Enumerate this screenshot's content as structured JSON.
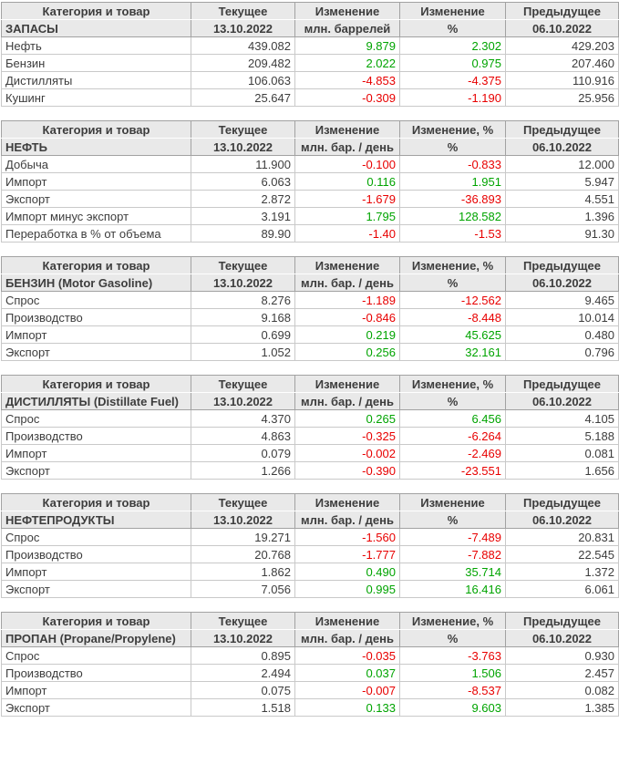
{
  "report": {
    "current_date": "13.10.2022",
    "previous_date": "06.10.2022"
  },
  "colors": {
    "positive_value": "#00a400",
    "negative_value": "#e80000",
    "header_background": "#e9e9e9"
  },
  "chart_data": [
    {
      "type": "table",
      "id": "inventories",
      "title": "ЗАПАСЫ",
      "unit": "млн. баррелей",
      "columns": [
        "Категория и товар",
        "Текущее",
        "Изменение",
        "Изменение",
        "Предыдущее"
      ],
      "subheader": [
        "ЗАПАСЫ",
        "13.10.2022",
        "млн. баррелей",
        "%",
        "06.10.2022"
      ],
      "rows": [
        [
          "Нефть",
          "439.082",
          "9.879",
          "2.302",
          "429.203"
        ],
        [
          "Бензин",
          "209.482",
          "2.022",
          "0.975",
          "207.460"
        ],
        [
          "Дистилляты",
          "106.063",
          "-4.853",
          "-4.375",
          "110.916"
        ],
        [
          "Кушинг",
          "25.647",
          "-0.309",
          "-1.190",
          "25.956"
        ]
      ]
    },
    {
      "type": "table",
      "id": "crude-oil",
      "title": "НЕФТЬ",
      "unit": "млн. бар. / день",
      "columns": [
        "Категория и товар",
        "Текущее",
        "Изменение",
        "Изменение, %",
        "Предыдущее"
      ],
      "subheader": [
        "НЕФТЬ",
        "13.10.2022",
        "млн. бар. / день",
        "%",
        "06.10.2022"
      ],
      "rows": [
        [
          "Добыча",
          "11.900",
          "-0.100",
          "-0.833",
          "12.000"
        ],
        [
          "Импорт",
          "6.063",
          "0.116",
          "1.951",
          "5.947"
        ],
        [
          "Экспорт",
          "2.872",
          "-1.679",
          "-36.893",
          "4.551"
        ],
        [
          "Импорт минус экспорт",
          "3.191",
          "1.795",
          "128.582",
          "1.396"
        ],
        [
          "Переработка в % от объема",
          "89.90",
          "-1.40",
          "-1.53",
          "91.30"
        ]
      ]
    },
    {
      "type": "table",
      "id": "gasoline",
      "title": "БЕНЗИН (Motor Gasoline)",
      "unit": "млн. бар. / день",
      "columns": [
        "Категория и товар",
        "Текущее",
        "Изменение",
        "Изменение, %",
        "Предыдущее"
      ],
      "subheader": [
        "БЕНЗИН (Motor Gasoline)",
        "13.10.2022",
        "млн. бар. / день",
        "%",
        "06.10.2022"
      ],
      "rows": [
        [
          "Спрос",
          "8.276",
          "-1.189",
          "-12.562",
          "9.465"
        ],
        [
          "Производство",
          "9.168",
          "-0.846",
          "-8.448",
          "10.014"
        ],
        [
          "Импорт",
          "0.699",
          "0.219",
          "45.625",
          "0.480"
        ],
        [
          "Экспорт",
          "1.052",
          "0.256",
          "32.161",
          "0.796"
        ]
      ]
    },
    {
      "type": "table",
      "id": "distillate",
      "title": "ДИСТИЛЛЯТЫ (Distillate Fuel)",
      "unit": "млн. бар. / день",
      "columns": [
        "Категория и товар",
        "Текущее",
        "Изменение",
        "Изменение, %",
        "Предыдущее"
      ],
      "subheader": [
        "ДИСТИЛЛЯТЫ (Distillate Fuel)",
        "13.10.2022",
        "млн. бар. / день",
        "%",
        "06.10.2022"
      ],
      "rows": [
        [
          "Спрос",
          "4.370",
          "0.265",
          "6.456",
          "4.105"
        ],
        [
          "Производство",
          "4.863",
          "-0.325",
          "-6.264",
          "5.188"
        ],
        [
          "Импорт",
          "0.079",
          "-0.002",
          "-2.469",
          "0.081"
        ],
        [
          "Экспорт",
          "1.266",
          "-0.390",
          "-23.551",
          "1.656"
        ]
      ]
    },
    {
      "type": "table",
      "id": "petroleum-products",
      "title": "НЕФТЕПРОДУКТЫ",
      "unit": "млн. бар. / день",
      "columns": [
        "Категория и товар",
        "Текущее",
        "Изменение",
        "Изменение",
        "Предыдущее"
      ],
      "subheader": [
        "НЕФТЕПРОДУКТЫ",
        "13.10.2022",
        "млн. бар. / день",
        "%",
        "06.10.2022"
      ],
      "rows": [
        [
          "Спрос",
          "19.271",
          "-1.560",
          "-7.489",
          "20.831"
        ],
        [
          "Производство",
          "20.768",
          "-1.777",
          "-7.882",
          "22.545"
        ],
        [
          "Импорт",
          "1.862",
          "0.490",
          "35.714",
          "1.372"
        ],
        [
          "Экспорт",
          "7.056",
          "0.995",
          "16.416",
          "6.061"
        ]
      ]
    },
    {
      "type": "table",
      "id": "propane",
      "title": "ПРОПАН (Propane/Propylene)",
      "unit": "млн. бар. / день",
      "columns": [
        "Категория и товар",
        "Текущее",
        "Изменение",
        "Изменение, %",
        "Предыдущее"
      ],
      "subheader": [
        "ПРОПАН (Propane/Propylene)",
        "13.10.2022",
        "млн. бар. / день",
        "%",
        "06.10.2022"
      ],
      "rows": [
        [
          "Спрос",
          "0.895",
          "-0.035",
          "-3.763",
          "0.930"
        ],
        [
          "Производство",
          "2.494",
          "0.037",
          "1.506",
          "2.457"
        ],
        [
          "Импорт",
          "0.075",
          "-0.007",
          "-8.537",
          "0.082"
        ],
        [
          "Экспорт",
          "1.518",
          "0.133",
          "9.603",
          "1.385"
        ]
      ]
    }
  ]
}
